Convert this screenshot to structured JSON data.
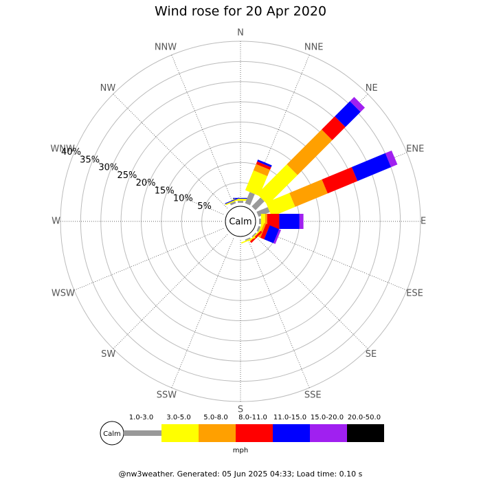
{
  "chart_data": {
    "type": "windrose",
    "title": "Wind rose for 20 Apr 2020",
    "categories": [
      "N",
      "NNE",
      "NE",
      "ENE",
      "E",
      "ESE",
      "SE",
      "SSE",
      "S",
      "SSW",
      "SW",
      "WSW",
      "W",
      "WNW",
      "NW",
      "NNW"
    ],
    "calm_label": "Calm",
    "unit": "mph",
    "footer": "@nw3weather. Generated: 05 Jun 2025 04:33; Load time: 0.10 s",
    "rlim": [
      0,
      40
    ],
    "rticks": [
      {
        "value": 5,
        "label": "5%"
      },
      {
        "value": 10,
        "label": "10%"
      },
      {
        "value": 15,
        "label": "15%"
      },
      {
        "value": 20,
        "label": "20%"
      },
      {
        "value": 25,
        "label": "25%"
      },
      {
        "value": 30,
        "label": "30%"
      },
      {
        "value": 35,
        "label": "35%"
      },
      {
        "value": 40,
        "label": "40%"
      }
    ],
    "series": [
      {
        "name": "1.0-3.0",
        "color": "#999999",
        "values": [
          0.5,
          3,
          3.1,
          3,
          0.5,
          0.5,
          0.3,
          0.3,
          0,
          0,
          0,
          0,
          0,
          0,
          0,
          0.5
        ]
      },
      {
        "name": "3.0-5.0",
        "color": "#ffff00",
        "values": [
          0.5,
          5.3,
          10.4,
          6.3,
          1,
          0.5,
          0.3,
          0.3,
          0,
          0,
          0,
          0,
          0,
          0,
          0,
          0.3
        ]
      },
      {
        "name": "5.0-8.0",
        "color": "#ffa000",
        "values": [
          0,
          1.7,
          12.2,
          8.7,
          0.5,
          0.5,
          0,
          0,
          0,
          0,
          0,
          0,
          0,
          0,
          0,
          0
        ]
      },
      {
        "name": "8.0-11.0",
        "color": "#ff0000",
        "values": [
          0,
          0.7,
          4.6,
          8,
          3,
          1,
          0.5,
          0,
          0,
          0,
          0,
          0,
          0,
          0,
          0,
          0
        ]
      },
      {
        "name": "11.0-15.0",
        "color": "#0000ff",
        "values": [
          0.2,
          0.5,
          5.3,
          9,
          5,
          2.5,
          0,
          0,
          0,
          0,
          0,
          0,
          0,
          0,
          0,
          0.2
        ]
      },
      {
        "name": "15.0-20.0",
        "color": "#a020f0",
        "values": [
          0,
          0,
          1.5,
          1.7,
          1,
          0.5,
          0,
          0,
          0,
          0,
          0,
          0,
          0,
          0,
          0,
          0
        ]
      },
      {
        "name": "20.0-50.0",
        "color": "#000000",
        "values": [
          0,
          0,
          0,
          0,
          0,
          0,
          0,
          0,
          0,
          0,
          0,
          0,
          0,
          0,
          0,
          0
        ]
      }
    ]
  }
}
